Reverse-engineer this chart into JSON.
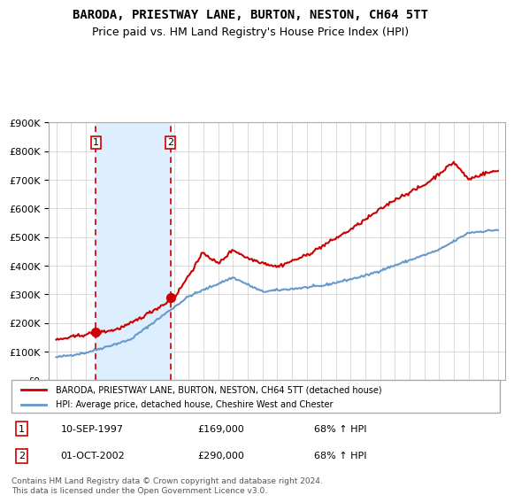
{
  "title": "BARODA, PRIESTWAY LANE, BURTON, NESTON, CH64 5TT",
  "subtitle": "Price paid vs. HM Land Registry's House Price Index (HPI)",
  "legend_line1": "BARODA, PRIESTWAY LANE, BURTON, NESTON, CH64 5TT (detached house)",
  "legend_line2": "HPI: Average price, detached house, Cheshire West and Chester",
  "transaction1_date": 1997.69,
  "transaction1_price": 169000,
  "transaction1_label": "10-SEP-1997",
  "transaction1_value": "£169,000",
  "transaction1_hpi": "68% ↑ HPI",
  "transaction2_date": 2002.75,
  "transaction2_price": 290000,
  "transaction2_label": "01-OCT-2002",
  "transaction2_value": "£290,000",
  "transaction2_hpi": "68% ↑ HPI",
  "xlabel": "",
  "ylabel": "",
  "ylim": [
    0,
    900000
  ],
  "xlim": [
    1994.5,
    2025.5
  ],
  "red_color": "#cc0000",
  "blue_color": "#6699cc",
  "shade_color": "#ddeeff",
  "footer": "Contains HM Land Registry data © Crown copyright and database right 2024.\nThis data is licensed under the Open Government Licence v3.0.",
  "marker1": 1,
  "marker2": 2
}
